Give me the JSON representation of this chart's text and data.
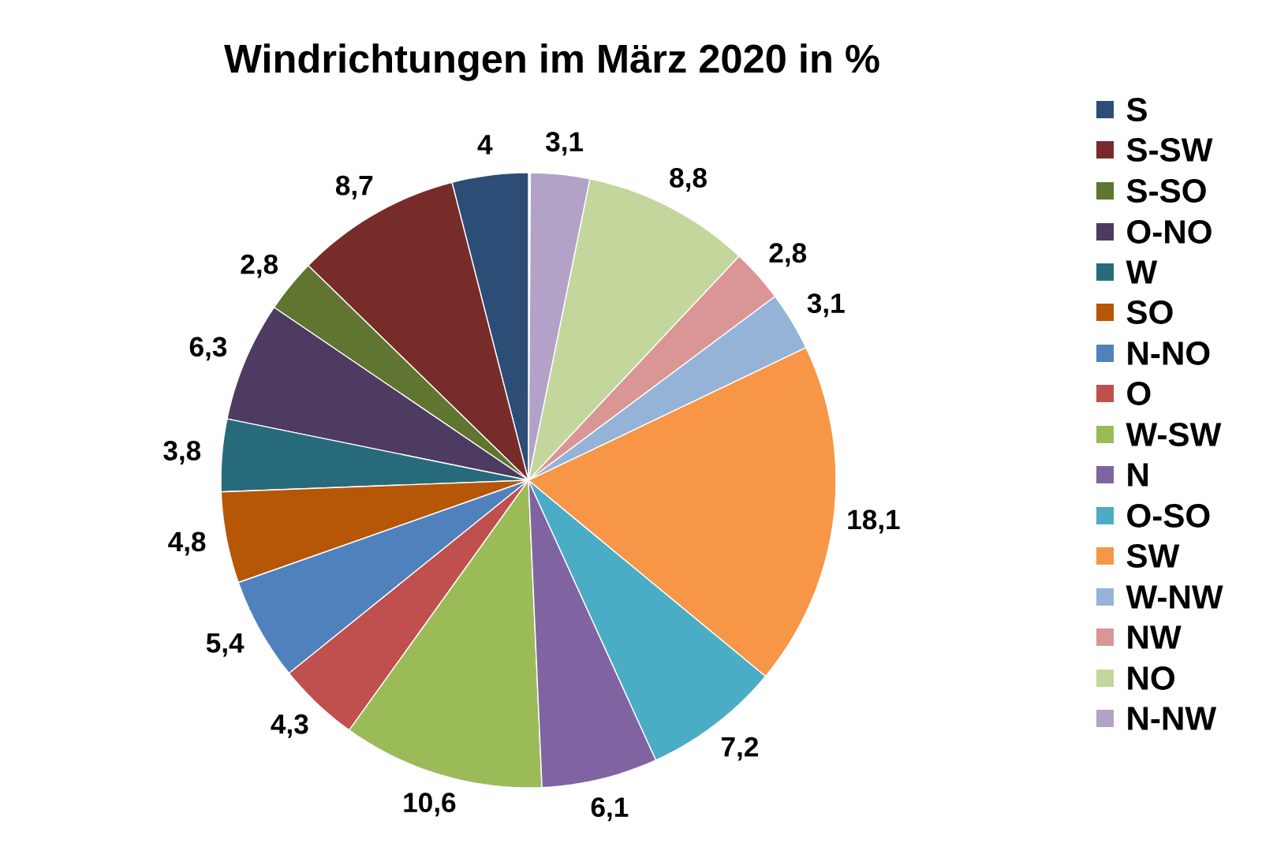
{
  "chart_data": {
    "type": "pie",
    "title": "Windrichtungen im März 2020 in %",
    "categories": [
      "S",
      "S-SW",
      "S-SO",
      "O-NO",
      "W",
      "SO",
      "N-NO",
      "O",
      "W-SW",
      "N",
      "O-SO",
      "SW",
      "W-NW",
      "NW",
      "NO",
      "N-NW"
    ],
    "values": [
      4,
      8.7,
      2.8,
      6.3,
      3.8,
      4.8,
      5.4,
      4.3,
      10.6,
      6.1,
      7.2,
      18.1,
      3.1,
      2.8,
      8.8,
      3.1
    ],
    "value_labels": [
      "4",
      "8,7",
      "2,8",
      "6,3",
      "3,8",
      "4,8",
      "5,4",
      "4,3",
      "10,6",
      "6,1",
      "7,2",
      "18,1",
      "3,1",
      "2,8",
      "8,8",
      "3,1"
    ],
    "colors": [
      "#2c4d75",
      "#772c2a",
      "#5f7530",
      "#4d3b62",
      "#276a7c",
      "#b65708",
      "#4f81bd",
      "#c0504d",
      "#9bbb59",
      "#8064a2",
      "#4bacc6",
      "#f79646",
      "#95b3d7",
      "#d99694",
      "#c3d69b",
      "#b3a2c7"
    ],
    "legend": "right"
  }
}
